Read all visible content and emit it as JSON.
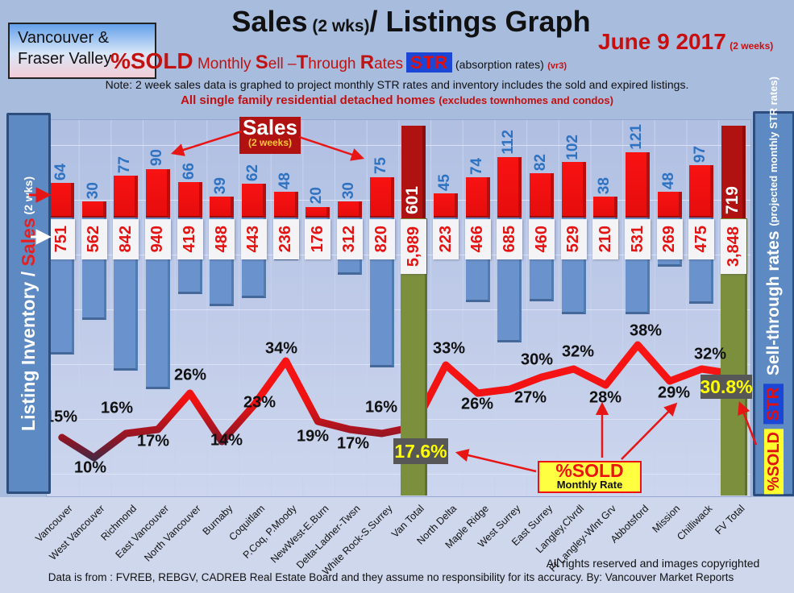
{
  "header": {
    "region_line1": "Vancouver &",
    "region_line2": "Fraser Valley",
    "title_main": "Sales",
    "title_small": " (2 wks)",
    "title_rest": "/ Listings Graph",
    "date": "June 9 2017",
    "date_suffix": "(2 weeks)",
    "sold_label": "%SOLD",
    "rates_pre1": "Monthly ",
    "rates_cap1": "S",
    "rates_mid1": "ell –",
    "rates_cap2": "T",
    "rates_mid2": "hrough ",
    "rates_cap3": "R",
    "rates_mid3": "ates",
    "str_badge": "STR",
    "absorption": "(absorption rates)",
    "version": "(vr3)",
    "note": "Note: 2 week sales data is graphed to project monthly STR rates and inventory includes the sold and expired listings.",
    "scope": "All single family residential detached homes ",
    "scope_paren": "(excludes townhomes and condos)"
  },
  "left_axis": {
    "part1": "Listing Inventory / ",
    "part2": "Sales",
    "part3": " (2  wks)"
  },
  "right_axis": {
    "sold_badge": "%SOLD",
    "str_badge": "STR",
    "title": " Sell-through rates ",
    "subtitle": " (projected monthly STR rates)"
  },
  "callouts": {
    "sales_line1": "Sales",
    "sales_line2": "(2 weeks)",
    "sold_line1": "%SOLD",
    "sold_line2": "Monthly Rate"
  },
  "footer": {
    "rights": "All rights reserved and  images copyrighted",
    "source": "Data is from : FVREB, REBGV, CADREB Real Estate Board and they assume no responsibility for its accuracy. By: Vancouver Market Reports"
  },
  "chart_data": {
    "type": "bar+line combo (sales bars up, inventory bars down, STR % line)",
    "categories": [
      "Vancouver",
      "West Vancouver",
      "Richmond",
      "East Vancouver",
      "North Vancouver",
      "Burnaby",
      "Coquitlam",
      "P.Coq, P.Moody",
      "NewWest-E.Burn",
      "Delta-Ladner-Twsn",
      "White Rock-S.Surrey",
      "Van Total",
      "North Delta",
      "Maple Ridge",
      "West Surrey",
      "East Surrey",
      "Langley,Clvrdl",
      "Ft Langley-Wlnt Grv",
      "Abbotsford",
      "Mission",
      "Chilliwack",
      "FV Total"
    ],
    "total_indices": [
      11,
      21
    ],
    "series": [
      {
        "name": "Sales (2 weeks)",
        "values": [
          64,
          30,
          77,
          90,
          66,
          39,
          62,
          48,
          20,
          30,
          75,
          601,
          45,
          74,
          112,
          82,
          102,
          38,
          121,
          48,
          97,
          719
        ]
      },
      {
        "name": "Listing Inventory",
        "values": [
          751,
          562,
          842,
          940,
          419,
          488,
          443,
          236,
          176,
          312,
          820,
          5989,
          223,
          466,
          685,
          460,
          529,
          210,
          531,
          269,
          475,
          3848
        ]
      },
      {
        "name": "%SOLD monthly sell-through rate",
        "values": [
          15,
          10,
          16,
          17,
          26,
          14,
          23,
          34,
          19,
          17,
          16,
          17.6,
          33,
          26,
          27,
          30,
          32,
          28,
          38,
          29,
          32,
          30.8
        ]
      }
    ],
    "inventory_labels": [
      "751",
      "562",
      "842",
      "940",
      "419",
      "488",
      "443",
      "236",
      "176",
      "312",
      "820",
      "5,989",
      "223",
      "466",
      "685",
      "460",
      "529",
      "210",
      "531",
      "269",
      "475",
      "3,848"
    ],
    "sold_labels": [
      "15%",
      "10%",
      "16%",
      "17%",
      "26%",
      "14%",
      "23%",
      "34%",
      "19%",
      "17%",
      "16%",
      "17.6%",
      "33%",
      "26%",
      "27%",
      "30%",
      "32%",
      "28%",
      "38%",
      "29%",
      "32%",
      "30.8%"
    ],
    "ylabel_left": "Listing Inventory / Sales (2 wks)",
    "ylabel_right": "Sell-through rates (projected monthly STR rates)",
    "grid": true,
    "legend_position": "callout boxes with arrows"
  },
  "colors": {
    "page_bg": "#a8bcde",
    "plot_bg_top": "#b0bfe2",
    "plot_bg_bottom": "#cdd6ee",
    "sales_bar": "#ee1010",
    "total_bar": "#b01111",
    "inventory_bar": "#6a92cc",
    "total_column_green": "#7b8f3d",
    "line_red": "#ee1111",
    "line_dark_dip": "#233050",
    "sales_number_blue": "#2e72c2",
    "inventory_number_red": "#e51212",
    "rate_box_bg": "#575757",
    "rate_box_text": "#ffff00",
    "sidebar_bg": "#5e8ac3",
    "sidebar_border": "#2c4d7e",
    "str_badge_bg": "#1b46d6",
    "sold_badge_bg": "#ffff2e",
    "accent_red": "#c40f0f"
  }
}
